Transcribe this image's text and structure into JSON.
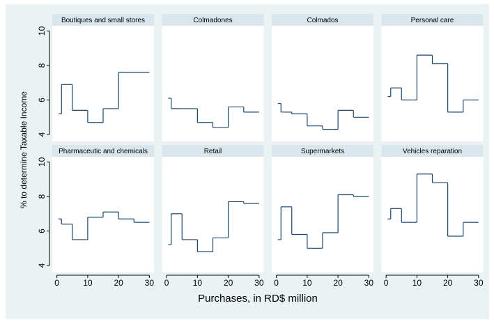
{
  "chart_data": {
    "type": "line",
    "step": "post",
    "xlabel": "Purchases, in RD$ million",
    "ylabel": "% to determine Taxable Income",
    "x": [
      0.5,
      1.5,
      5,
      10,
      15,
      20,
      25,
      30
    ],
    "xlim": [
      -1.5,
      31.5
    ],
    "xticks": [
      0,
      10,
      20,
      30
    ],
    "ylim": [
      3.6,
      10.3
    ],
    "yticks": [
      4,
      6,
      8,
      10
    ],
    "color": "#1a476f",
    "grid": false,
    "panels": [
      {
        "title": "Boutiques and small stores",
        "values": [
          5.2,
          6.9,
          5.4,
          4.7,
          5.5,
          7.6,
          7.6,
          7.6
        ]
      },
      {
        "title": "Colmadones",
        "values": [
          6.1,
          5.5,
          5.5,
          4.7,
          4.4,
          5.6,
          5.3,
          5.3
        ]
      },
      {
        "title": "Colmados",
        "values": [
          5.8,
          5.3,
          5.2,
          4.5,
          4.3,
          5.4,
          5.0,
          5.0
        ]
      },
      {
        "title": "Personal care",
        "values": [
          6.2,
          6.7,
          6.0,
          8.6,
          8.1,
          5.3,
          6.0,
          6.0
        ]
      },
      {
        "title": "Pharmaceutic and chemicals",
        "values": [
          6.7,
          6.4,
          5.5,
          6.8,
          7.1,
          6.7,
          6.5,
          6.5
        ]
      },
      {
        "title": "Retail",
        "values": [
          5.2,
          7.0,
          5.5,
          4.8,
          5.6,
          7.7,
          7.6,
          7.6
        ]
      },
      {
        "title": "Supermarkets",
        "values": [
          5.5,
          7.4,
          5.8,
          5.0,
          5.9,
          8.1,
          8.0,
          8.0
        ]
      },
      {
        "title": "Vehicles reparation",
        "values": [
          6.7,
          7.3,
          6.5,
          9.3,
          8.8,
          5.7,
          6.5,
          6.5
        ]
      }
    ]
  }
}
